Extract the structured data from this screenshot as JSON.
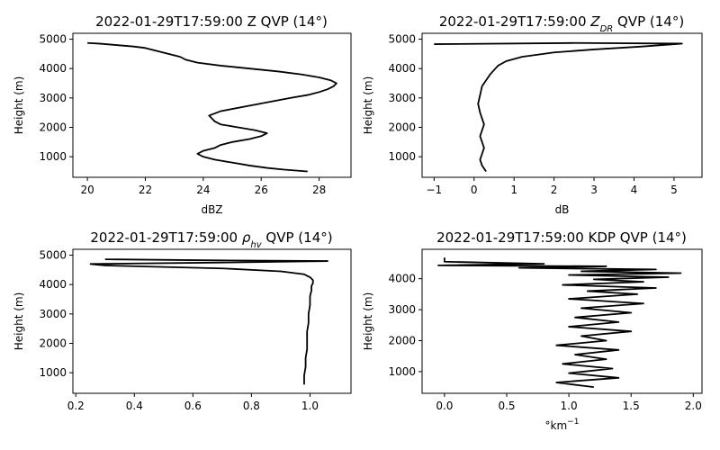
{
  "chart_data": [
    {
      "type": "line",
      "title": "2022-01-29T17:59:00 Z QVP (14°)",
      "xlabel": "dBZ",
      "ylabel": "Height (m)",
      "xlim": [
        19.5,
        29.1
      ],
      "ylim": [
        300,
        5200
      ],
      "xticks": [
        20,
        22,
        24,
        26,
        28
      ],
      "yticks": [
        1000,
        2000,
        3000,
        4000,
        5000
      ],
      "grid": false,
      "series": [
        {
          "color": "#000000",
          "x": [
            27.6,
            26.8,
            26.2,
            25.6,
            25.0,
            24.4,
            24.0,
            23.8,
            24.0,
            24.4,
            24.6,
            25.0,
            25.6,
            26.0,
            26.2,
            25.8,
            25.2,
            24.6,
            24.4,
            24.2,
            24.6,
            25.4,
            26.2,
            27.0,
            27.6,
            28.0,
            28.3,
            28.5,
            28.6,
            28.4,
            28.0,
            27.4,
            26.6,
            25.6,
            24.6,
            23.8,
            23.4,
            23.2,
            22.8,
            22.6,
            22.4,
            22.2,
            22.0,
            21.6,
            21.0,
            20.4,
            20.0
          ],
          "y": [
            500,
            560,
            620,
            700,
            800,
            900,
            1000,
            1100,
            1200,
            1300,
            1400,
            1500,
            1600,
            1700,
            1800,
            1900,
            2000,
            2100,
            2200,
            2400,
            2550,
            2700,
            2850,
            3000,
            3100,
            3200,
            3300,
            3400,
            3500,
            3600,
            3700,
            3800,
            3900,
            4000,
            4100,
            4200,
            4300,
            4400,
            4500,
            4550,
            4600,
            4650,
            4700,
            4750,
            4800,
            4850,
            4870
          ]
        }
      ]
    },
    {
      "type": "line",
      "title": "2022-01-29T17:59:00 Z_DR QVP (14°)",
      "xlabel": "dB",
      "ylabel": "Height (m)",
      "xlim": [
        -1.3,
        5.7
      ],
      "ylim": [
        300,
        5200
      ],
      "xticks": [
        -1,
        0,
        1,
        2,
        3,
        4,
        5
      ],
      "yticks": [
        1000,
        2000,
        3000,
        4000,
        5000
      ],
      "grid": false,
      "series": [
        {
          "color": "#000000",
          "x": [
            0.3,
            0.2,
            0.15,
            0.2,
            0.25,
            0.2,
            0.15,
            0.2,
            0.25,
            0.2,
            0.15,
            0.1,
            0.15,
            0.2,
            0.3,
            0.4,
            0.5,
            0.6,
            0.8,
            1.2,
            2.0,
            3.0,
            4.2,
            5.2,
            2.5,
            -1.0
          ],
          "y": [
            500,
            700,
            900,
            1100,
            1300,
            1500,
            1700,
            1900,
            2100,
            2300,
            2500,
            2800,
            3100,
            3400,
            3600,
            3800,
            3950,
            4100,
            4250,
            4400,
            4550,
            4650,
            4750,
            4850,
            4870,
            4830
          ]
        }
      ]
    },
    {
      "type": "line",
      "title": "2022-01-29T17:59:00 ρ_hv QVP (14°)",
      "xlabel": "",
      "ylabel": "Height (m)",
      "xlim": [
        0.19,
        1.14
      ],
      "ylim": [
        300,
        5200
      ],
      "xticks": [
        0.2,
        0.4,
        0.6,
        0.8,
        1.0
      ],
      "xticklabels": [
        "0.2",
        "0.4",
        "0.6",
        "0.8",
        "1.0"
      ],
      "yticks": [
        1000,
        2000,
        3000,
        4000,
        5000
      ],
      "grid": false,
      "series": [
        {
          "color": "#000000",
          "x": [
            0.98,
            0.98,
            0.985,
            0.985,
            0.99,
            0.99,
            0.99,
            0.995,
            0.995,
            1.0,
            1.0,
            1.005,
            1.005,
            1.01,
            1.01,
            1.0,
            0.98,
            0.9,
            0.7,
            0.5,
            0.3,
            0.25,
            0.7,
            1.06,
            0.6,
            0.3
          ],
          "y": [
            600,
            900,
            1200,
            1500,
            1800,
            2100,
            2400,
            2700,
            3000,
            3300,
            3600,
            3800,
            3950,
            4050,
            4150,
            4250,
            4350,
            4450,
            4550,
            4600,
            4650,
            4700,
            4750,
            4800,
            4830,
            4860
          ]
        }
      ]
    },
    {
      "type": "line",
      "title": "2022-01-29T17:59:00 KDP QVP (14°)",
      "xlabel": "°km⁻¹",
      "ylabel": "Height (m)",
      "xlim": [
        -0.18,
        2.07
      ],
      "ylim": [
        300,
        4950
      ],
      "xticks": [
        0.0,
        0.5,
        1.0,
        1.5,
        2.0
      ],
      "xticklabels": [
        "0.0",
        "0.5",
        "1.0",
        "1.5",
        "2.0"
      ],
      "yticks": [
        1000,
        2000,
        3000,
        4000
      ],
      "grid": false,
      "series": [
        {
          "color": "#000000",
          "x": [
            1.2,
            0.9,
            1.4,
            1.0,
            1.35,
            0.95,
            1.3,
            1.05,
            1.4,
            0.9,
            1.3,
            1.1,
            1.5,
            1.0,
            1.4,
            1.05,
            1.5,
            1.1,
            1.6,
            1.0,
            1.55,
            1.15,
            1.7,
            0.95,
            1.6,
            1.2,
            1.8,
            1.0,
            1.9,
            1.1,
            1.7,
            0.6,
            1.3,
            -0.05,
            0.8,
            0.0,
            0.0
          ],
          "y": [
            500,
            650,
            800,
            950,
            1100,
            1250,
            1400,
            1550,
            1700,
            1850,
            2000,
            2150,
            2300,
            2450,
            2600,
            2750,
            2900,
            3050,
            3200,
            3350,
            3500,
            3600,
            3700,
            3800,
            3900,
            3980,
            4050,
            4120,
            4180,
            4240,
            4300,
            4350,
            4400,
            4430,
            4480,
            4550,
            4680
          ]
        }
      ]
    }
  ]
}
